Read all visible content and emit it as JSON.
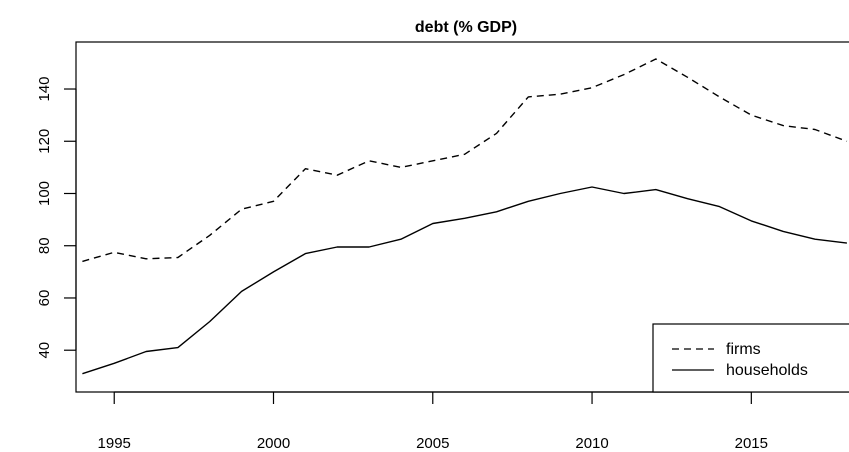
{
  "chart_data": {
    "type": "line",
    "title": "debt (% GDP)",
    "xlabel": "",
    "ylabel": "",
    "xlim": [
      1993.8,
      2018.6
    ],
    "ylim": [
      24,
      158
    ],
    "x_ticks": [
      1995,
      2000,
      2005,
      2010,
      2015
    ],
    "y_ticks": [
      40,
      60,
      80,
      100,
      120,
      140
    ],
    "grid": false,
    "legend_position": "bottom-right",
    "x": [
      1994,
      1995,
      1996,
      1997,
      1998,
      1999,
      2000,
      2001,
      2002,
      2003,
      2004,
      2005,
      2006,
      2007,
      2008,
      2009,
      2010,
      2011,
      2012,
      2013,
      2014,
      2015,
      2016,
      2017,
      2018
    ],
    "series": [
      {
        "name": "firms",
        "line_style": "dashed",
        "values": [
          74,
          77.5,
          75,
          75.5,
          84,
          94,
          97,
          109.5,
          107,
          112.5,
          110,
          112.5,
          115,
          123,
          137,
          138,
          140.5,
          145.5,
          151.5,
          144.5,
          137,
          130,
          126,
          124.5,
          120
        ]
      },
      {
        "name": "households",
        "line_style": "solid",
        "values": [
          31,
          35,
          39.5,
          41,
          51,
          62.5,
          70,
          77,
          79.5,
          79.5,
          82.5,
          88.5,
          90.5,
          93,
          97,
          100,
          102.5,
          100,
          101.5,
          98,
          95,
          89.5,
          85.5,
          82.5,
          81
        ]
      }
    ]
  }
}
